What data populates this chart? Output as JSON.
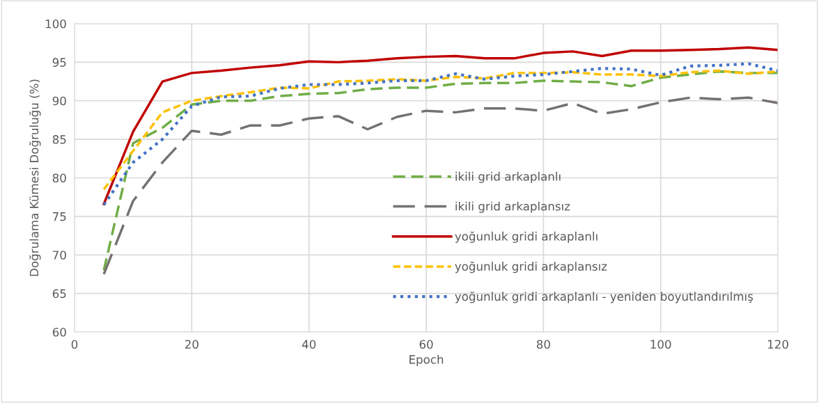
{
  "chart_data": {
    "type": "line",
    "xlabel": "Epoch",
    "ylabel": "Doğrulama Kümesi Doğruluğu (%)",
    "x": [
      5,
      10,
      15,
      20,
      25,
      30,
      35,
      40,
      45,
      50,
      55,
      60,
      65,
      70,
      75,
      80,
      85,
      90,
      95,
      100,
      105,
      110,
      115,
      120
    ],
    "xlim": [
      0,
      120
    ],
    "xticks": [
      0,
      20,
      40,
      60,
      80,
      100,
      120
    ],
    "ylim": [
      60,
      100
    ],
    "yticks": [
      60,
      65,
      70,
      75,
      80,
      85,
      90,
      95,
      100
    ],
    "grid": true,
    "legend": "lower right",
    "marker": "none",
    "series": [
      {
        "name": "ikili grid arkaplanlı",
        "color": "#70ad47",
        "line_style": "dashed",
        "values": [
          68,
          84.5,
          86.5,
          89.5,
          90,
          90,
          90.6,
          90.9,
          91,
          91.5,
          91.7,
          91.7,
          92.2,
          92.3,
          92.3,
          92.6,
          92.5,
          92.4,
          91.9,
          93,
          93.4,
          93.8,
          93.6,
          93.6
        ]
      },
      {
        "name": "ikili grid arkaplansız",
        "color": "#767171",
        "line_style": "longdash",
        "values": [
          67.5,
          77,
          82,
          86.1,
          85.6,
          86.8,
          86.8,
          87.7,
          88,
          86.3,
          87.9,
          88.7,
          88.5,
          89,
          89,
          88.7,
          89.7,
          88.3,
          88.9,
          89.8,
          90.4,
          90.2,
          90.4,
          89.7
        ]
      },
      {
        "name": "yoğunluk gridi arkaplanlı",
        "color": "#c00000",
        "line_style": "solid",
        "values": [
          76.6,
          86,
          92.5,
          93.6,
          93.9,
          94.3,
          94.6,
          95.1,
          95,
          95.2,
          95.5,
          95.7,
          95.8,
          95.5,
          95.5,
          96.2,
          96.4,
          95.8,
          96.5,
          96.5,
          96.6,
          96.7,
          96.9,
          96.6
        ]
      },
      {
        "name": "yoğunluk gridi arkaplansız",
        "color": "#ffc000",
        "line_style": "shortdash",
        "values": [
          78.5,
          83.5,
          88.5,
          90,
          90.6,
          91.1,
          91.7,
          91.6,
          92.5,
          92.6,
          92.8,
          92.6,
          93.1,
          92.9,
          93.6,
          93.6,
          93.7,
          93.4,
          93.4,
          93.2,
          93.7,
          93.9,
          93.5,
          93.8
        ]
      },
      {
        "name": "yoğunluk gridi arkaplanlı - yeniden boyutlandırılmış",
        "color": "#4472c4",
        "line_style": "dotted",
        "values": [
          76.5,
          82,
          85,
          89.3,
          90.5,
          90.6,
          91.6,
          92.1,
          92.1,
          92.3,
          92.6,
          92.6,
          93.5,
          92.8,
          93.2,
          93.4,
          93.8,
          94.2,
          94.1,
          93.3,
          94.5,
          94.6,
          94.8,
          93.9
        ]
      }
    ]
  }
}
